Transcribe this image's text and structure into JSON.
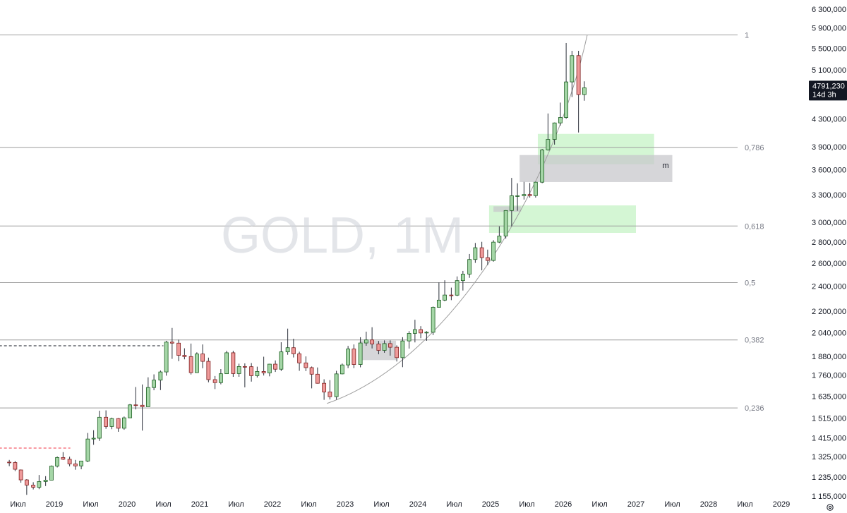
{
  "chart_data": {
    "type": "candlestick",
    "symbol_watermark": "GOLD, 1M",
    "colors": {
      "up_fill": "#a5d6a7",
      "up_stroke": "#1b5e20",
      "down_fill": "#ef9a9a",
      "down_stroke": "#7f1d1d",
      "fib_line": "#9e9e9e",
      "green_zone": "#ccf5cc",
      "gray_zone": "#c8c8cc",
      "price_badge": "#131722"
    },
    "price_axis_labels": [
      "6 300,000",
      "5 900,000",
      "5 500,000",
      "5 100,000",
      "4 300,000",
      "3 900,000",
      "3 600,000",
      "3 300,000",
      "3 000,000",
      "2 800,000",
      "2 600,000",
      "2 400,000",
      "2 200,000",
      "2 040,000",
      "1 880,000",
      "1 760,000",
      "1 635,000",
      "1 515,000",
      "1 415,000",
      "1 325,000",
      "1 235,000",
      "1 155,000"
    ],
    "price_axis_values": [
      6300,
      5900,
      5500,
      5100,
      4300,
      3900,
      3600,
      3300,
      3000,
      2800,
      2600,
      2400,
      2200,
      2040,
      1880,
      1760,
      1635,
      1515,
      1415,
      1325,
      1235,
      1155
    ],
    "time_axis_labels": [
      "Июл",
      "2019",
      "Июл",
      "2020",
      "Июл",
      "2021",
      "Июл",
      "2022",
      "Июл",
      "2023",
      "Июл",
      "2024",
      "Июл",
      "2025",
      "Июл",
      "2026",
      "Июл",
      "2027",
      "Июл",
      "2028",
      "Июл",
      "2029"
    ],
    "time_axis_values": [
      2018.5,
      2019.0,
      2019.5,
      2020.0,
      2020.5,
      2021.0,
      2021.5,
      2022.0,
      2022.5,
      2023.0,
      2023.5,
      2024.0,
      2024.5,
      2025.0,
      2025.5,
      2026.0,
      2026.5,
      2027.0,
      2027.5,
      2028.0,
      2028.5,
      2029.0
    ],
    "current_price": {
      "value": "4791,230",
      "countdown": "14d 3h",
      "price": 4791
    },
    "fib_levels": [
      {
        "label": "1",
        "price": 5760
      },
      {
        "label": "0,786",
        "price": 3890
      },
      {
        "label": "0,618",
        "price": 2960
      },
      {
        "label": "0,5",
        "price": 2430
      },
      {
        "label": "0,382",
        "price": 1990
      },
      {
        "label": "0,236",
        "price": 1570
      }
    ],
    "zones": [
      {
        "kind": "green",
        "t0": 2025.65,
        "t1": 2027.25,
        "p_low": 3670,
        "p_high": 4080
      },
      {
        "kind": "gray",
        "t0": 2025.4,
        "t1": 2027.5,
        "p_low": 3450,
        "p_high": 3790,
        "label": "m"
      },
      {
        "kind": "green",
        "t0": 2024.98,
        "t1": 2027.0,
        "p_low": 2890,
        "p_high": 3180
      },
      {
        "kind": "gray",
        "t0": 2025.04,
        "t1": 2025.42,
        "p_low": 3110,
        "p_high": 3170
      },
      {
        "kind": "gray",
        "t0": 2023.2,
        "t1": 2023.7,
        "p_low": 1855,
        "p_high": 1985
      }
    ],
    "candles": [
      {
        "t": 2018.38,
        "o": 1300,
        "h": 1310,
        "l": 1282,
        "c": 1298
      },
      {
        "t": 2018.46,
        "o": 1298,
        "h": 1305,
        "l": 1260,
        "c": 1268
      },
      {
        "t": 2018.54,
        "o": 1265,
        "h": 1267,
        "l": 1210,
        "c": 1222
      },
      {
        "t": 2018.62,
        "o": 1222,
        "h": 1225,
        "l": 1160,
        "c": 1200
      },
      {
        "t": 2018.71,
        "o": 1200,
        "h": 1212,
        "l": 1182,
        "c": 1191
      },
      {
        "t": 2018.79,
        "o": 1191,
        "h": 1243,
        "l": 1183,
        "c": 1215
      },
      {
        "t": 2018.88,
        "o": 1215,
        "h": 1238,
        "l": 1196,
        "c": 1221
      },
      {
        "t": 2018.96,
        "o": 1221,
        "h": 1285,
        "l": 1221,
        "c": 1282
      },
      {
        "t": 2019.04,
        "o": 1282,
        "h": 1326,
        "l": 1276,
        "c": 1321
      },
      {
        "t": 2019.12,
        "o": 1321,
        "h": 1346,
        "l": 1310,
        "c": 1313
      },
      {
        "t": 2019.21,
        "o": 1313,
        "h": 1325,
        "l": 1281,
        "c": 1292
      },
      {
        "t": 2019.29,
        "o": 1292,
        "h": 1310,
        "l": 1266,
        "c": 1283
      },
      {
        "t": 2019.37,
        "o": 1283,
        "h": 1306,
        "l": 1268,
        "c": 1305
      },
      {
        "t": 2019.46,
        "o": 1305,
        "h": 1439,
        "l": 1300,
        "c": 1409
      },
      {
        "t": 2019.54,
        "o": 1409,
        "h": 1453,
        "l": 1381,
        "c": 1413
      },
      {
        "t": 2019.62,
        "o": 1413,
        "h": 1555,
        "l": 1400,
        "c": 1520
      },
      {
        "t": 2019.71,
        "o": 1520,
        "h": 1557,
        "l": 1460,
        "c": 1472
      },
      {
        "t": 2019.79,
        "o": 1472,
        "h": 1518,
        "l": 1458,
        "c": 1513
      },
      {
        "t": 2019.88,
        "o": 1513,
        "h": 1516,
        "l": 1445,
        "c": 1463
      },
      {
        "t": 2019.96,
        "o": 1463,
        "h": 1524,
        "l": 1455,
        "c": 1517
      },
      {
        "t": 2020.04,
        "o": 1517,
        "h": 1592,
        "l": 1517,
        "c": 1587
      },
      {
        "t": 2020.12,
        "o": 1587,
        "h": 1689,
        "l": 1562,
        "c": 1585
      },
      {
        "t": 2020.21,
        "o": 1585,
        "h": 1704,
        "l": 1451,
        "c": 1577
      },
      {
        "t": 2020.29,
        "o": 1577,
        "h": 1747,
        "l": 1576,
        "c": 1686
      },
      {
        "t": 2020.37,
        "o": 1686,
        "h": 1765,
        "l": 1670,
        "c": 1730
      },
      {
        "t": 2020.46,
        "o": 1730,
        "h": 1789,
        "l": 1671,
        "c": 1780
      },
      {
        "t": 2020.54,
        "o": 1780,
        "h": 1984,
        "l": 1757,
        "c": 1975
      },
      {
        "t": 2020.62,
        "o": 1975,
        "h": 2075,
        "l": 1863,
        "c": 1968
      },
      {
        "t": 2020.71,
        "o": 1968,
        "h": 1992,
        "l": 1848,
        "c": 1886
      },
      {
        "t": 2020.79,
        "o": 1886,
        "h": 1933,
        "l": 1860,
        "c": 1878
      },
      {
        "t": 2020.88,
        "o": 1878,
        "h": 1965,
        "l": 1764,
        "c": 1776
      },
      {
        "t": 2020.96,
        "o": 1776,
        "h": 1906,
        "l": 1775,
        "c": 1895
      },
      {
        "t": 2021.04,
        "o": 1895,
        "h": 1959,
        "l": 1803,
        "c": 1847
      },
      {
        "t": 2021.12,
        "o": 1847,
        "h": 1871,
        "l": 1717,
        "c": 1733
      },
      {
        "t": 2021.21,
        "o": 1733,
        "h": 1755,
        "l": 1677,
        "c": 1715
      },
      {
        "t": 2021.29,
        "o": 1715,
        "h": 1798,
        "l": 1705,
        "c": 1769
      },
      {
        "t": 2021.37,
        "o": 1769,
        "h": 1916,
        "l": 1768,
        "c": 1903
      },
      {
        "t": 2021.46,
        "o": 1903,
        "h": 1916,
        "l": 1750,
        "c": 1770
      },
      {
        "t": 2021.54,
        "o": 1770,
        "h": 1832,
        "l": 1750,
        "c": 1814
      },
      {
        "t": 2021.62,
        "o": 1814,
        "h": 1834,
        "l": 1687,
        "c": 1813
      },
      {
        "t": 2021.71,
        "o": 1813,
        "h": 1836,
        "l": 1721,
        "c": 1757
      },
      {
        "t": 2021.79,
        "o": 1757,
        "h": 1813,
        "l": 1746,
        "c": 1783
      },
      {
        "t": 2021.88,
        "o": 1783,
        "h": 1877,
        "l": 1758,
        "c": 1774
      },
      {
        "t": 2021.96,
        "o": 1774,
        "h": 1831,
        "l": 1753,
        "c": 1829
      },
      {
        "t": 2022.04,
        "o": 1829,
        "h": 1853,
        "l": 1780,
        "c": 1797
      },
      {
        "t": 2022.12,
        "o": 1797,
        "h": 1974,
        "l": 1786,
        "c": 1909
      },
      {
        "t": 2022.21,
        "o": 1909,
        "h": 2070,
        "l": 1890,
        "c": 1937
      },
      {
        "t": 2022.29,
        "o": 1937,
        "h": 1998,
        "l": 1872,
        "c": 1896
      },
      {
        "t": 2022.37,
        "o": 1896,
        "h": 1910,
        "l": 1787,
        "c": 1837
      },
      {
        "t": 2022.46,
        "o": 1837,
        "h": 1879,
        "l": 1785,
        "c": 1807
      },
      {
        "t": 2022.54,
        "o": 1807,
        "h": 1814,
        "l": 1681,
        "c": 1766
      },
      {
        "t": 2022.62,
        "o": 1766,
        "h": 1808,
        "l": 1709,
        "c": 1711
      },
      {
        "t": 2022.71,
        "o": 1711,
        "h": 1735,
        "l": 1615,
        "c": 1660
      },
      {
        "t": 2022.79,
        "o": 1660,
        "h": 1730,
        "l": 1617,
        "c": 1633
      },
      {
        "t": 2022.88,
        "o": 1633,
        "h": 1787,
        "l": 1616,
        "c": 1768
      },
      {
        "t": 2022.96,
        "o": 1768,
        "h": 1833,
        "l": 1765,
        "c": 1824
      },
      {
        "t": 2023.04,
        "o": 1824,
        "h": 1949,
        "l": 1804,
        "c": 1928
      },
      {
        "t": 2023.12,
        "o": 1928,
        "h": 1959,
        "l": 1804,
        "c": 1827
      },
      {
        "t": 2023.21,
        "o": 1827,
        "h": 2009,
        "l": 1809,
        "c": 1969
      },
      {
        "t": 2023.29,
        "o": 1969,
        "h": 2048,
        "l": 1950,
        "c": 1990
      },
      {
        "t": 2023.37,
        "o": 1990,
        "h": 2080,
        "l": 1932,
        "c": 1962
      },
      {
        "t": 2023.46,
        "o": 1962,
        "h": 1983,
        "l": 1893,
        "c": 1919
      },
      {
        "t": 2023.54,
        "o": 1919,
        "h": 1987,
        "l": 1903,
        "c": 1965
      },
      {
        "t": 2023.62,
        "o": 1965,
        "h": 1987,
        "l": 1884,
        "c": 1940
      },
      {
        "t": 2023.71,
        "o": 1940,
        "h": 1953,
        "l": 1846,
        "c": 1871
      },
      {
        "t": 2023.79,
        "o": 1871,
        "h": 2009,
        "l": 1810,
        "c": 1983
      },
      {
        "t": 2023.88,
        "o": 1983,
        "h": 2052,
        "l": 1931,
        "c": 2036
      },
      {
        "t": 2023.96,
        "o": 2036,
        "h": 2135,
        "l": 1973,
        "c": 2063
      },
      {
        "t": 2024.04,
        "o": 2063,
        "h": 2088,
        "l": 2002,
        "c": 2039
      },
      {
        "t": 2024.12,
        "o": 2039,
        "h": 2052,
        "l": 1984,
        "c": 2044
      },
      {
        "t": 2024.21,
        "o": 2044,
        "h": 2236,
        "l": 2024,
        "c": 2230
      },
      {
        "t": 2024.29,
        "o": 2230,
        "h": 2431,
        "l": 2228,
        "c": 2286
      },
      {
        "t": 2024.37,
        "o": 2286,
        "h": 2450,
        "l": 2277,
        "c": 2327
      },
      {
        "t": 2024.46,
        "o": 2327,
        "h": 2388,
        "l": 2286,
        "c": 2326
      },
      {
        "t": 2024.54,
        "o": 2326,
        "h": 2483,
        "l": 2318,
        "c": 2447
      },
      {
        "t": 2024.62,
        "o": 2447,
        "h": 2531,
        "l": 2364,
        "c": 2503
      },
      {
        "t": 2024.71,
        "o": 2503,
        "h": 2685,
        "l": 2471,
        "c": 2634
      },
      {
        "t": 2024.79,
        "o": 2634,
        "h": 2790,
        "l": 2603,
        "c": 2744
      },
      {
        "t": 2024.88,
        "o": 2744,
        "h": 2801,
        "l": 2536,
        "c": 2651
      },
      {
        "t": 2024.96,
        "o": 2651,
        "h": 2726,
        "l": 2583,
        "c": 2625
      },
      {
        "t": 2025.04,
        "o": 2625,
        "h": 2817,
        "l": 2614,
        "c": 2798
      },
      {
        "t": 2025.12,
        "o": 2798,
        "h": 2956,
        "l": 2789,
        "c": 2858
      },
      {
        "t": 2025.21,
        "o": 2858,
        "h": 3128,
        "l": 2833,
        "c": 3124
      },
      {
        "t": 2025.29,
        "o": 3124,
        "h": 3500,
        "l": 2957,
        "c": 3289
      },
      {
        "t": 2025.37,
        "o": 3289,
        "h": 3435,
        "l": 3121,
        "c": 3289
      },
      {
        "t": 2025.46,
        "o": 3289,
        "h": 3452,
        "l": 3246,
        "c": 3303
      },
      {
        "t": 2025.54,
        "o": 3303,
        "h": 3439,
        "l": 3268,
        "c": 3290
      },
      {
        "t": 2025.62,
        "o": 3290,
        "h": 3453,
        "l": 3268,
        "c": 3448
      },
      {
        "t": 2025.71,
        "o": 3448,
        "h": 3871,
        "l": 3436,
        "c": 3858
      },
      {
        "t": 2025.79,
        "o": 3858,
        "h": 4381,
        "l": 3849,
        "c": 4002
      },
      {
        "t": 2025.88,
        "o": 4002,
        "h": 4245,
        "l": 3930,
        "c": 4239
      },
      {
        "t": 2025.96,
        "o": 4239,
        "h": 4550,
        "l": 4200,
        "c": 4320
      },
      {
        "t": 2026.04,
        "o": 4320,
        "h": 5600,
        "l": 4300,
        "c": 4890
      },
      {
        "t": 2026.12,
        "o": 4890,
        "h": 5450,
        "l": 4640,
        "c": 5360
      },
      {
        "t": 2026.21,
        "o": 5360,
        "h": 5450,
        "l": 4100,
        "c": 4680
      },
      {
        "t": 2026.29,
        "o": 4680,
        "h": 4900,
        "l": 4580,
        "c": 4791
      }
    ],
    "arc": {
      "t0": 2022.75,
      "p0": 1595,
      "t1": 2024.5,
      "p1": 1860,
      "t2": 2025.9,
      "p2": 3500,
      "t3": 2026.33,
      "p3": 5760
    },
    "dashed_levels": [
      {
        "color": "#131722",
        "price": 1950,
        "t0": 2017.9,
        "t1": 2020.5
      },
      {
        "color": "#f23645",
        "price": 1365,
        "t0": 2017.9,
        "t1": 2019.22
      }
    ]
  }
}
